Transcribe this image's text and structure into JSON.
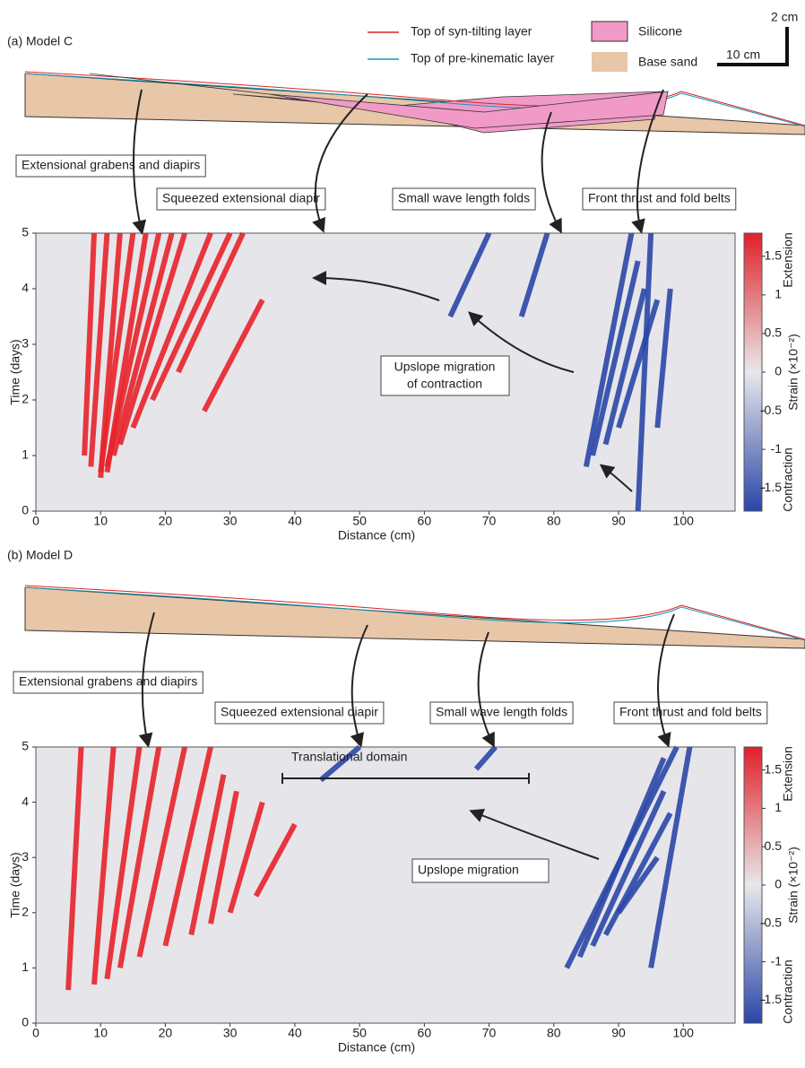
{
  "panels": [
    {
      "label": "(a) Model C",
      "legend": {
        "syn": "Top of syn-tilting layer",
        "pre": "Top of pre-kinematic layer",
        "silicone": "Silicone",
        "sand": "Base sand"
      },
      "scale": {
        "vertical": "2 cm",
        "horizontal": "10 cm"
      },
      "annotations": {
        "grabens": "Extensional grabens and diapirs",
        "diapir": "Squeezed extensional diapir",
        "folds": "Small wave length folds",
        "thrust": "Front thrust and fold belts",
        "upslope": [
          "Upslope migration",
          "of contraction"
        ]
      },
      "plot": {
        "xlabel": "Distance (cm)",
        "ylabel": "Time (days)",
        "xlim": [
          0,
          108
        ],
        "ylim": [
          0,
          5
        ],
        "xticks": [
          0,
          10,
          20,
          30,
          40,
          50,
          60,
          70,
          80,
          90,
          100
        ],
        "yticks": [
          0,
          1,
          2,
          3,
          4,
          5
        ],
        "colorbar": {
          "label": "Strain (×10⁻²)",
          "top": "Extension",
          "bottom": "Contraction",
          "lim": [
            -1.8,
            1.8
          ],
          "ticks": [
            1.5,
            1,
            0.5,
            0,
            -0.5,
            -1,
            -1.5
          ]
        }
      }
    },
    {
      "label": "(b) Model D",
      "annotations": {
        "grabens": "Extensional grabens and diapirs",
        "diapir": "Squeezed extensional diapir",
        "folds": "Small wave length folds",
        "thrust": "Front thrust and fold belts",
        "upslope": [
          "Upslope migration"
        ],
        "translational": "Translational domain"
      },
      "plot": {
        "xlabel": "Distance (cm)",
        "ylabel": "Time (days)",
        "xlim": [
          0,
          108
        ],
        "ylim": [
          0,
          5
        ],
        "xticks": [
          0,
          10,
          20,
          30,
          40,
          50,
          60,
          70,
          80,
          90,
          100
        ],
        "yticks": [
          0,
          1,
          2,
          3,
          4,
          5
        ],
        "colorbar": {
          "label": "Strain (×10⁻²)",
          "top": "Extension",
          "bottom": "Contraction",
          "lim": [
            -1.8,
            1.8
          ],
          "ticks": [
            1.5,
            1,
            0.5,
            0,
            -0.5,
            -1,
            -1.5
          ]
        }
      }
    }
  ]
}
